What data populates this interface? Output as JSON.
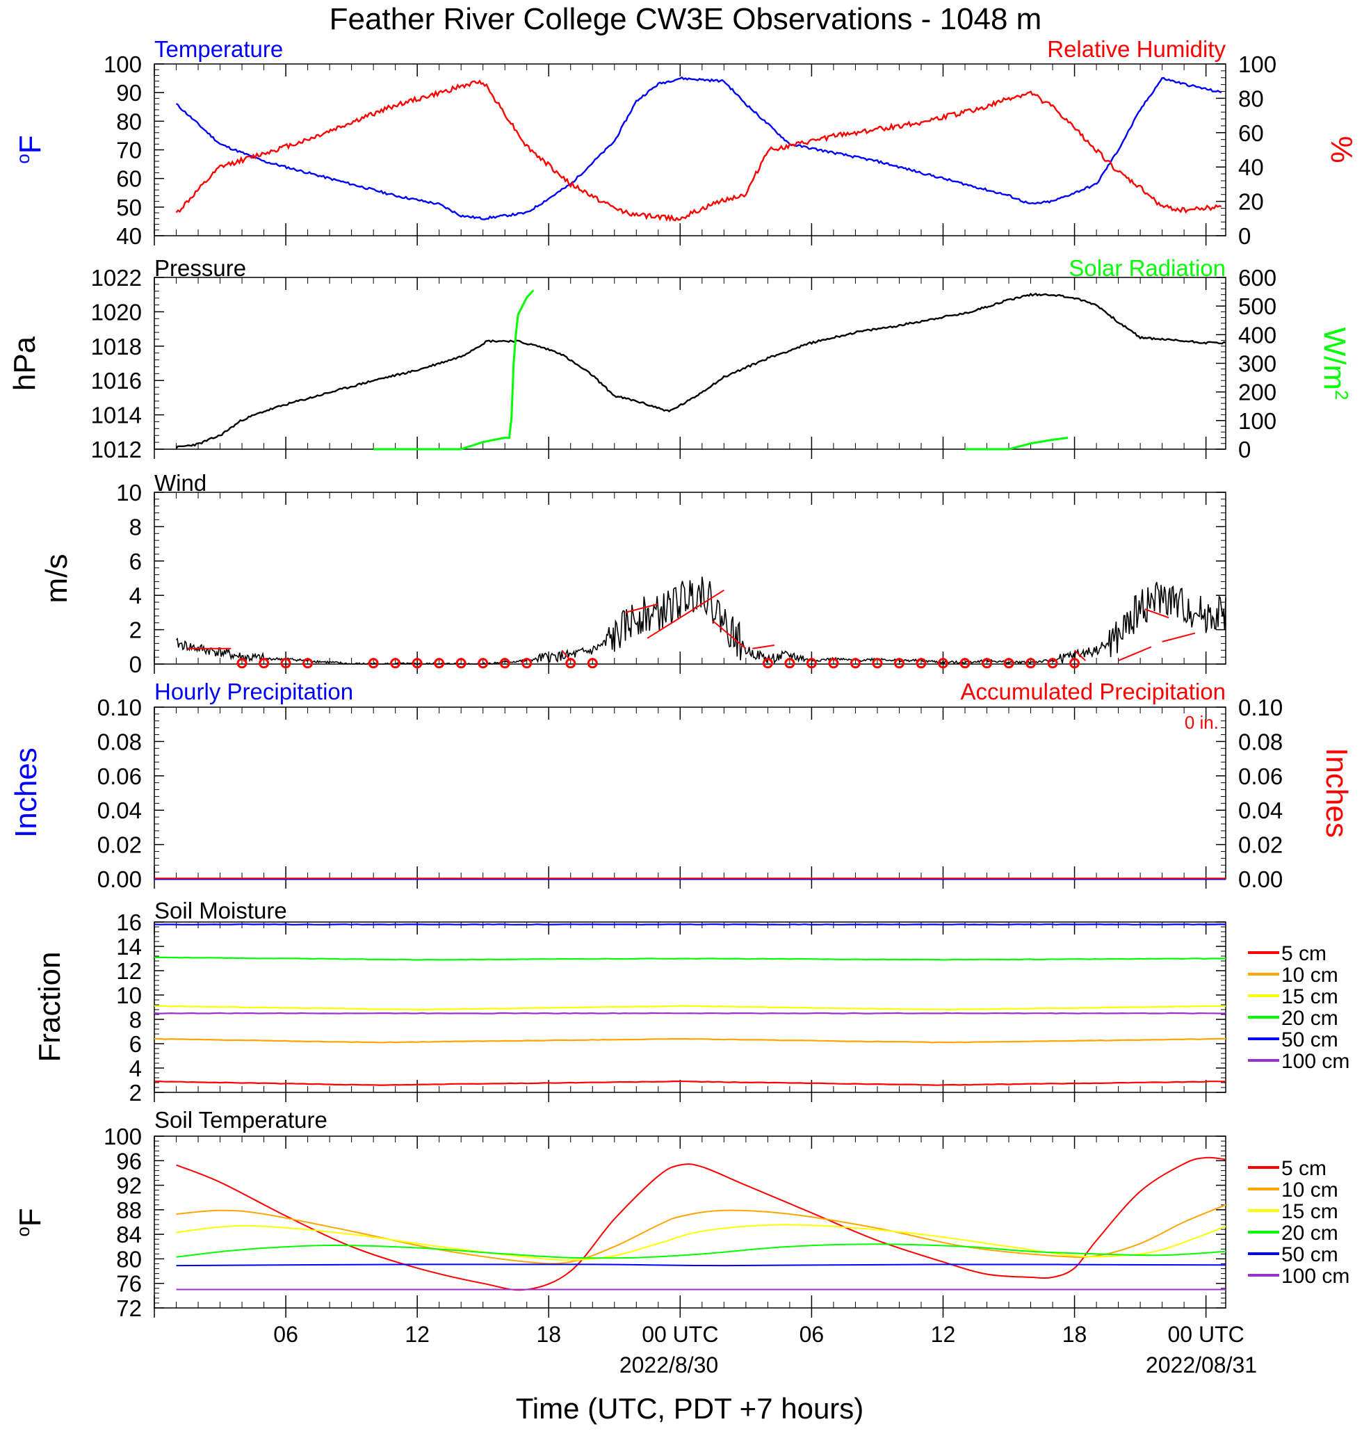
{
  "title": "Feather River College CW3E Observations - 1048 m",
  "x_axis": {
    "label": "Time (UTC, PDT +7 hours)",
    "ticks": [
      "06",
      "12",
      "18",
      "00 UTC",
      "06",
      "12",
      "18",
      "00 UTC"
    ],
    "dates": [
      "2022/8/30",
      "2022/08/31"
    ]
  },
  "colors": {
    "temperature": "#0000ff",
    "rh": "#ff0000",
    "pressure": "#000000",
    "solar": "#00ff00",
    "wind": "#000000",
    "wind_barb": "#ff0000"
  },
  "chart_data": [
    {
      "type": "line",
      "title_left": "Temperature",
      "title_right": "Relative Humidity",
      "ylabel_left": "oF",
      "ylabel_right": "%",
      "ylim_left": [
        40,
        100
      ],
      "ylim_right": [
        0,
        100
      ],
      "yticks_left": [
        "40",
        "50",
        "60",
        "70",
        "80",
        "90",
        "100"
      ],
      "yticks_right": [
        "0",
        "20",
        "40",
        "60",
        "80",
        "100"
      ],
      "x_hours": [
        1,
        3,
        5,
        7,
        9,
        11,
        13,
        14,
        15,
        17,
        19,
        21,
        22,
        23,
        24,
        26,
        27,
        28,
        29,
        31,
        33,
        35,
        37,
        38,
        39,
        40,
        41,
        43,
        44,
        45,
        46,
        47,
        48.7
      ],
      "series": [
        {
          "name": "Temperature",
          "axis": "left",
          "values": [
            86,
            72,
            66,
            62,
            58,
            54,
            51,
            47,
            46,
            48,
            58,
            73,
            87,
            93,
            95,
            94,
            86,
            79,
            72,
            69,
            66,
            62,
            58,
            56,
            54,
            51,
            52,
            58,
            70,
            84,
            95,
            93,
            90
          ]
        },
        {
          "name": "Relative Humidity",
          "axis": "right",
          "values": [
            13,
            40,
            48,
            56,
            66,
            76,
            83,
            87,
            90,
            52,
            30,
            16,
            12,
            11,
            10,
            21,
            24,
            50,
            52,
            58,
            62,
            66,
            72,
            75,
            80,
            83,
            75,
            50,
            37,
            28,
            17,
            15,
            17
          ]
        }
      ]
    },
    {
      "type": "line",
      "title_left": "Pressure",
      "title_right": "Solar Radiation",
      "ylabel_left": "hPa",
      "ylabel_right": "W/m2",
      "ylim_left": [
        1012,
        1022
      ],
      "ylim_right": [
        0,
        600
      ],
      "yticks_left": [
        "1012",
        "1014",
        "1016",
        "1018",
        "1020",
        "1022"
      ],
      "yticks_right": [
        "0",
        "100",
        "200",
        "300",
        "400",
        "500",
        "600"
      ],
      "series": [
        {
          "name": "Pressure",
          "axis": "left",
          "x_hours": [
            1,
            2,
            3,
            4,
            5,
            6,
            8,
            10,
            12,
            14,
            15.2,
            16.5,
            17.5,
            18.5,
            20,
            21,
            22,
            23.5,
            24.5,
            26,
            28,
            30,
            32,
            34,
            36,
            37,
            38,
            39,
            40,
            41,
            42,
            43,
            44,
            45,
            46,
            47,
            48,
            48.9
          ],
          "values": [
            1012.1,
            1012.3,
            1012.8,
            1013.7,
            1014.2,
            1014.6,
            1015.3,
            1016.0,
            1016.6,
            1017.4,
            1018.3,
            1018.3,
            1018.0,
            1017.6,
            1016.3,
            1015.1,
            1014.8,
            1014.2,
            1014.9,
            1016.2,
            1017.3,
            1018.2,
            1018.8,
            1019.2,
            1019.7,
            1019.9,
            1020.3,
            1020.7,
            1021.0,
            1021.0,
            1020.8,
            1020.4,
            1019.4,
            1018.5,
            1018.4,
            1018.3,
            1018.2,
            1018.2
          ]
        },
        {
          "name": "Solar Radiation",
          "axis": "right",
          "x_hours": [
            10,
            14,
            15,
            16,
            16.2,
            16.3,
            16.4,
            16.5,
            16.6,
            16.8,
            17,
            17.3
          ],
          "values": [
            0,
            0,
            25,
            40,
            40,
            110,
            300,
            400,
            470,
            500,
            530,
            555
          ]
        },
        {
          "name": "Solar Radiation (day 2)",
          "axis": "right",
          "x_hours": [
            37,
            39,
            40,
            41,
            41.7
          ],
          "values": [
            0,
            0,
            20,
            33,
            40
          ]
        }
      ]
    },
    {
      "type": "line",
      "title_left": "Wind",
      "ylabel_left": "m/s",
      "ylim_left": [
        0,
        10
      ],
      "yticks_left": [
        "0",
        "2",
        "4",
        "6",
        "8",
        "10"
      ],
      "series": [
        {
          "name": "Wind",
          "x_hours": [
            1,
            2,
            3,
            4,
            5,
            6,
            7,
            8,
            9,
            10,
            11,
            12,
            13,
            14,
            15,
            16,
            17,
            18,
            19,
            20,
            21,
            22,
            23,
            24,
            25,
            26,
            27,
            28,
            29,
            30,
            31,
            32,
            33,
            34,
            35,
            36,
            37,
            38,
            39,
            40,
            41,
            42,
            43,
            44,
            45,
            46,
            47,
            48,
            48.9
          ],
          "values": [
            1.2,
            0.9,
            0.7,
            0.4,
            0.3,
            0.3,
            0.2,
            0.1,
            0.0,
            0.0,
            0.0,
            0.0,
            0.0,
            0.0,
            0.0,
            0.1,
            0.2,
            0.4,
            0.5,
            0.8,
            1.5,
            2.8,
            2.9,
            3.7,
            4.4,
            2.5,
            0.8,
            0.3,
            0.5,
            0.2,
            0.3,
            0.2,
            0.3,
            0.2,
            0.2,
            0.1,
            0.1,
            0.2,
            0.1,
            0.1,
            0.2,
            0.5,
            0.8,
            1.5,
            3.3,
            3.9,
            3.3,
            2.8,
            3.0
          ]
        }
      ],
      "calm_markers_hours": [
        4,
        5,
        6,
        7,
        10,
        11,
        12,
        13,
        14,
        15,
        16,
        17,
        19,
        20,
        28,
        29,
        30,
        31,
        32,
        33,
        34,
        35,
        36,
        37,
        38,
        39,
        40,
        41,
        42
      ]
    },
    {
      "type": "line",
      "title_left": "Hourly Precipitation",
      "title_right": "Accumulated Precipitation",
      "annotation": "0 in.",
      "ylabel_left": "Inches",
      "ylabel_right": "Inches",
      "ylim_left": [
        0,
        0.1
      ],
      "ylim_right": [
        0,
        0.1
      ],
      "yticks_left": [
        "0.00",
        "0.02",
        "0.04",
        "0.06",
        "0.08",
        "0.10"
      ],
      "yticks_right": [
        "0.00",
        "0.02",
        "0.04",
        "0.06",
        "0.08",
        "0.10"
      ],
      "series": [
        {
          "name": "Hourly Precipitation",
          "axis": "left",
          "x_hours": [
            0,
            49
          ],
          "values": [
            0,
            0
          ]
        },
        {
          "name": "Accumulated Precipitation",
          "axis": "right",
          "x_hours": [
            0,
            49
          ],
          "values": [
            0,
            0
          ]
        }
      ]
    },
    {
      "type": "line",
      "title_left": "Soil Moisture",
      "ylabel_left": "Fraction",
      "ylim_left": [
        2,
        16
      ],
      "yticks_left": [
        "2",
        "4",
        "6",
        "8",
        "10",
        "12",
        "14",
        "16"
      ],
      "series": [
        {
          "name": "5 cm",
          "color": "#ff0000",
          "x_hours": [
            0,
            10,
            24,
            36,
            49
          ],
          "values": [
            2.9,
            2.6,
            2.9,
            2.6,
            2.9
          ]
        },
        {
          "name": "10 cm",
          "color": "#ffa500",
          "x_hours": [
            0,
            10,
            24,
            36,
            49
          ],
          "values": [
            6.4,
            6.1,
            6.4,
            6.1,
            6.4
          ]
        },
        {
          "name": "15 cm",
          "color": "#ffff00",
          "x_hours": [
            0,
            12,
            24,
            36,
            49
          ],
          "values": [
            9.1,
            8.8,
            9.1,
            8.8,
            9.1
          ]
        },
        {
          "name": "20 cm",
          "color": "#00ff00",
          "x_hours": [
            0,
            12,
            24,
            36,
            49
          ],
          "values": [
            13.1,
            12.9,
            13.0,
            12.9,
            13.0
          ]
        },
        {
          "name": "50 cm",
          "color": "#0000ff",
          "x_hours": [
            0,
            49
          ],
          "values": [
            15.8,
            15.8
          ]
        },
        {
          "name": "100 cm",
          "color": "#9933cc",
          "x_hours": [
            0,
            49
          ],
          "values": [
            8.5,
            8.5
          ]
        }
      ]
    },
    {
      "type": "line",
      "title_left": "Soil Temperature",
      "ylabel_left": "oF",
      "ylim_left": [
        72,
        100
      ],
      "yticks_left": [
        "72",
        "76",
        "80",
        "84",
        "88",
        "92",
        "96",
        "100"
      ],
      "series": [
        {
          "name": "5 cm",
          "color": "#ff0000",
          "x_hours": [
            1,
            3,
            6,
            9,
            12,
            15,
            17,
            19,
            21,
            23,
            24,
            25,
            27,
            30,
            33,
            36,
            38,
            40,
            41,
            42,
            43,
            45,
            47,
            48,
            49
          ],
          "values": [
            95.3,
            92.5,
            87,
            82,
            78.5,
            76,
            75,
            78,
            86.5,
            93.5,
            95.3,
            95,
            92,
            87.5,
            83,
            79.5,
            77.5,
            77,
            77,
            78.5,
            83,
            91,
            95.5,
            96.5,
            96.2
          ]
        },
        {
          "name": "10 cm",
          "color": "#ffa500",
          "x_hours": [
            1,
            3,
            5,
            9,
            13,
            17,
            19,
            21,
            23,
            24,
            26,
            29,
            33,
            37,
            41,
            43,
            45,
            47,
            49
          ],
          "values": [
            87.3,
            87.9,
            87.3,
            84.5,
            81.5,
            79.5,
            79.5,
            82,
            85.5,
            86.9,
            87.9,
            87.3,
            85,
            82,
            80.5,
            80.5,
            82.5,
            86,
            88.8
          ]
        },
        {
          "name": "15 cm",
          "color": "#ffff00",
          "x_hours": [
            1,
            3,
            5,
            9,
            13,
            17,
            19,
            21,
            23,
            25,
            28,
            31,
            35,
            39,
            42,
            44,
            46,
            49
          ],
          "values": [
            84.3,
            85.2,
            85.3,
            84,
            82,
            80.3,
            79.8,
            80.5,
            82.5,
            84.5,
            85.5,
            85.3,
            84,
            82,
            80.5,
            80.5,
            81.5,
            85.3
          ]
        },
        {
          "name": "20 cm",
          "color": "#00ff00",
          "x_hours": [
            1,
            4,
            8,
            12,
            16,
            19,
            22,
            25,
            29,
            33,
            37,
            40,
            43,
            46,
            49
          ],
          "values": [
            80.3,
            81.5,
            82.2,
            81.8,
            80.8,
            80.2,
            80.2,
            80.8,
            82,
            82.4,
            82,
            81.2,
            80.8,
            80.6,
            81.2
          ]
        },
        {
          "name": "50 cm",
          "color": "#0000ff",
          "x_hours": [
            1,
            12,
            20,
            26,
            36,
            49
          ],
          "values": [
            78.9,
            79.1,
            79.1,
            78.9,
            79.1,
            79.0
          ]
        },
        {
          "name": "100 cm",
          "color": "#9933cc",
          "x_hours": [
            1,
            49
          ],
          "values": [
            75.0,
            75.0
          ]
        }
      ]
    }
  ]
}
